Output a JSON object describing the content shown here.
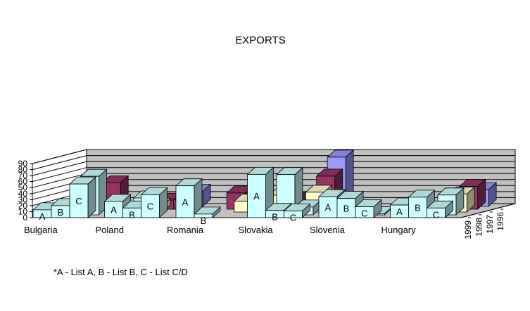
{
  "chart_data": {
    "type": "bar",
    "subtype": "3d-clustered-column",
    "title": "EXPORTS",
    "note": "*A - List A, B - List B, C - List C/D",
    "ylim": [
      0,
      90
    ],
    "yticks": [
      "0",
      "10",
      "20",
      "30",
      "40",
      "50",
      "60",
      "70",
      "80",
      "90"
    ],
    "grid": true,
    "categories": [
      "Bulgaria",
      "Poland",
      "Romania",
      "Slovakia",
      "Slovenia",
      "Hungary"
    ],
    "lists": [
      "A",
      "B",
      "C"
    ],
    "depth_series": [
      {
        "name": "1996",
        "values": [
          [
            0,
            0,
            0
          ],
          [
            0,
            0,
            25
          ],
          [
            0,
            0,
            0
          ],
          [
            0,
            0,
            82
          ],
          [
            0,
            0,
            0
          ],
          [
            0,
            0,
            28
          ]
        ]
      },
      {
        "name": "1997",
        "values": [
          [
            0,
            0,
            44
          ],
          [
            0,
            15,
            16
          ],
          [
            0,
            27,
            0
          ],
          [
            16,
            0,
            55
          ],
          [
            0,
            0,
            0
          ],
          [
            0,
            0,
            38
          ]
        ]
      },
      {
        "name": "1998",
        "values": [
          [
            9,
            0,
            0
          ],
          [
            0,
            11,
            0
          ],
          [
            0,
            0,
            18
          ],
          [
            28,
            0,
            33
          ],
          [
            0,
            0,
            0
          ],
          [
            0,
            0,
            30
          ]
        ]
      },
      {
        "name": "1999",
        "values": [
          [
            2,
            0,
            64
          ],
          [
            0,
            28,
            0
          ],
          [
            0,
            0,
            0
          ],
          [
            0,
            67,
            13
          ],
          [
            0,
            0,
            2
          ],
          [
            0,
            0,
            33
          ]
        ]
      }
    ],
    "front_series": {
      "name": "front",
      "values": [
        [
          13,
          20,
          56
        ],
        [
          27,
          16,
          38
        ],
        [
          53,
          6,
          0
        ],
        [
          72,
          12,
          11
        ],
        [
          35,
          32,
          18
        ],
        [
          21,
          34,
          16
        ]
      ]
    },
    "colors": {
      "1996": "#9999ff",
      "1997": "#993366",
      "1998": "#ffffcc",
      "1999": "#ccffff",
      "wall": "#c0c0c0",
      "floor": "#c0c0c0",
      "frame": "#000000"
    }
  }
}
